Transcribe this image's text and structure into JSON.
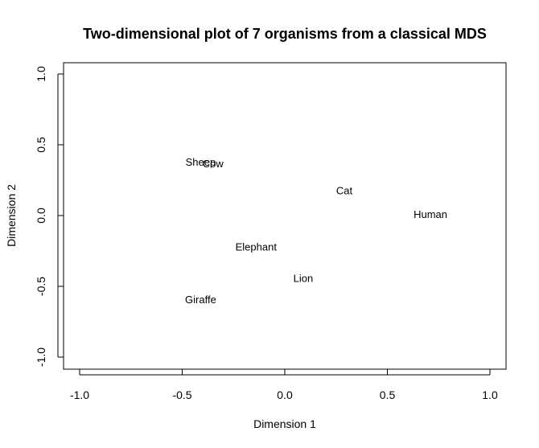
{
  "chart_data": {
    "type": "scatter",
    "title": "Two-dimensional plot of 7 organisms from a classical MDS",
    "xlabel": "Dimension 1",
    "ylabel": "Dimension 2",
    "xlim": [
      -1.0,
      1.0
    ],
    "ylim": [
      -1.0,
      1.0
    ],
    "xticks": [
      -1.0,
      -0.5,
      0.0,
      0.5,
      1.0
    ],
    "yticks": [
      -1.0,
      -0.5,
      0.0,
      0.5,
      1.0
    ],
    "xtick_labels": [
      "-1.0",
      "-0.5",
      "0.0",
      "0.5",
      "1.0"
    ],
    "ytick_labels": [
      "-1.0",
      "-0.5",
      "0.0",
      "0.5",
      "1.0"
    ],
    "grid": false,
    "legend": "none",
    "points": [
      {
        "label": "Sheep",
        "x": -0.41,
        "y": 0.38
      },
      {
        "label": "Cow",
        "x": -0.35,
        "y": 0.37
      },
      {
        "label": "Cat",
        "x": 0.29,
        "y": 0.18
      },
      {
        "label": "Human",
        "x": 0.71,
        "y": 0.01
      },
      {
        "label": "Elephant",
        "x": -0.14,
        "y": -0.22
      },
      {
        "label": "Lion",
        "x": 0.09,
        "y": -0.44
      },
      {
        "label": "Giraffe",
        "x": -0.41,
        "y": -0.59
      }
    ]
  }
}
